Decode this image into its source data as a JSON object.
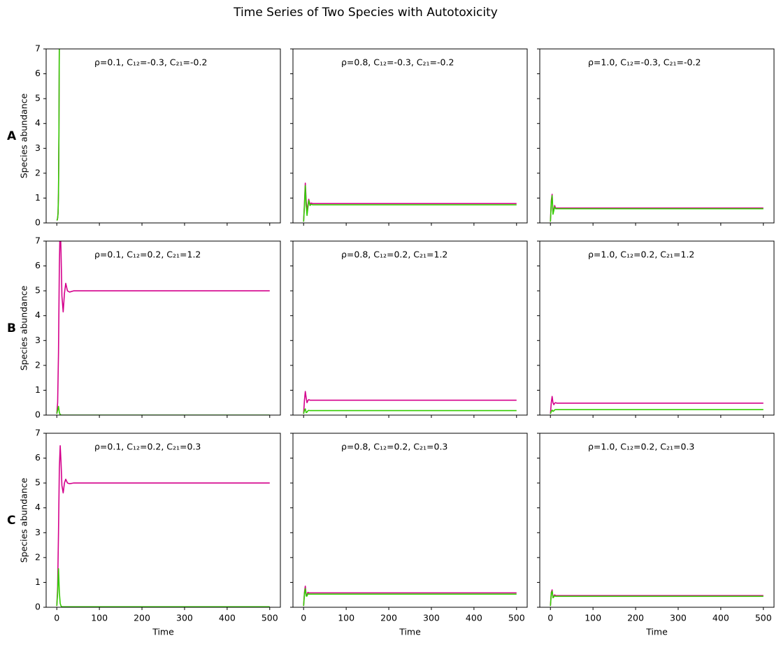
{
  "title": "Time Series of Two Species with Autotoxicity",
  "chart_data": [
    {
      "type": "line",
      "row_label": "A",
      "ylabel": "Species abundance",
      "annotation": "ρ=0.1, C₁₂=-0.3, C₂₁=-0.2",
      "x": [
        0,
        1,
        2,
        3,
        4,
        5,
        6,
        7
      ],
      "series": [
        {
          "color": "#d4008c",
          "values": [
            0.1,
            0.12,
            0.2,
            0.4,
            1.2,
            3.5,
            7.5,
            12
          ]
        },
        {
          "color": "#33cc00",
          "values": [
            0.1,
            0.12,
            0.2,
            0.4,
            1.2,
            3.5,
            7.5,
            12
          ]
        }
      ],
      "xlim": [
        -25,
        525
      ],
      "ylim": [
        0,
        7
      ],
      "xticks": [
        0,
        100,
        200,
        300,
        400,
        500
      ],
      "yticks": [
        0,
        1,
        2,
        3,
        4,
        5,
        6,
        7
      ]
    },
    {
      "type": "line",
      "annotation": "ρ=0.8, C₁₂=-0.3, C₂₁=-0.2",
      "x": [
        0,
        2,
        4,
        6,
        8,
        10,
        12,
        15,
        18,
        21,
        25,
        30,
        40,
        60,
        100,
        200,
        300,
        400,
        500
      ],
      "series": [
        {
          "color": "#d4008c",
          "values": [
            0.05,
            0.8,
            1.6,
            0.9,
            0.5,
            0.7,
            0.95,
            0.75,
            0.8,
            0.78,
            0.78,
            0.78,
            0.78,
            0.78,
            0.78,
            0.78,
            0.78,
            0.78,
            0.78
          ]
        },
        {
          "color": "#33cc00",
          "values": [
            0.05,
            0.7,
            1.5,
            0.7,
            0.3,
            0.6,
            0.9,
            0.7,
            0.75,
            0.73,
            0.73,
            0.73,
            0.73,
            0.73,
            0.73,
            0.73,
            0.73,
            0.73,
            0.73
          ]
        }
      ],
      "xlim": [
        -25,
        525
      ],
      "ylim": [
        0,
        7
      ],
      "xticks": [
        0,
        100,
        200,
        300,
        400,
        500
      ],
      "yticks": [
        0,
        1,
        2,
        3,
        4,
        5,
        6,
        7
      ]
    },
    {
      "type": "line",
      "annotation": "ρ=1.0, C₁₂=-0.3, C₂₁=-0.2",
      "x": [
        0,
        2,
        4,
        6,
        8,
        10,
        12,
        15,
        18,
        21,
        25,
        30,
        40,
        60,
        100,
        200,
        300,
        400,
        500
      ],
      "series": [
        {
          "color": "#d4008c",
          "values": [
            0.05,
            0.9,
            1.15,
            0.4,
            0.55,
            0.7,
            0.6,
            0.6,
            0.6,
            0.6,
            0.6,
            0.6,
            0.6,
            0.6,
            0.6,
            0.6,
            0.6,
            0.6,
            0.6
          ]
        },
        {
          "color": "#33cc00",
          "values": [
            0.05,
            0.8,
            1.1,
            0.35,
            0.5,
            0.65,
            0.57,
            0.57,
            0.57,
            0.57,
            0.57,
            0.57,
            0.57,
            0.57,
            0.57,
            0.57,
            0.57,
            0.57,
            0.57
          ]
        }
      ],
      "xlim": [
        -25,
        525
      ],
      "ylim": [
        0,
        7
      ],
      "xticks": [
        0,
        100,
        200,
        300,
        400,
        500
      ],
      "yticks": [
        0,
        1,
        2,
        3,
        4,
        5,
        6,
        7
      ]
    },
    {
      "type": "line",
      "row_label": "B",
      "ylabel": "Species abundance",
      "annotation": "ρ=0.1, C₁₂=0.2, C₂₁=1.2",
      "x": [
        0,
        2,
        4,
        6,
        8,
        10,
        12,
        15,
        18,
        21,
        25,
        30,
        40,
        60,
        100,
        200,
        300,
        400,
        500
      ],
      "series": [
        {
          "color": "#d4008c",
          "values": [
            0.05,
            0.5,
            2.5,
            6,
            7.8,
            6.5,
            4.8,
            4.15,
            4.9,
            5.3,
            5.0,
            4.95,
            5.0,
            5,
            5,
            5,
            5,
            5,
            5
          ]
        },
        {
          "color": "#33cc00",
          "values": [
            0.05,
            0.2,
            0.35,
            0.1,
            0.02,
            0,
            0,
            0,
            0,
            0,
            0,
            0,
            0,
            0,
            0,
            0,
            0,
            0,
            0
          ]
        }
      ],
      "xlim": [
        -25,
        525
      ],
      "ylim": [
        0,
        7
      ],
      "xticks": [
        0,
        100,
        200,
        300,
        400,
        500
      ],
      "yticks": [
        0,
        1,
        2,
        3,
        4,
        5,
        6,
        7
      ]
    },
    {
      "type": "line",
      "annotation": "ρ=0.8, C₁₂=0.2, C₂₁=1.2",
      "x": [
        0,
        2,
        4,
        6,
        8,
        10,
        12,
        15,
        18,
        21,
        25,
        30,
        40,
        60,
        100,
        200,
        300,
        400,
        500
      ],
      "series": [
        {
          "color": "#d4008c",
          "values": [
            0.05,
            0.6,
            0.95,
            0.7,
            0.5,
            0.58,
            0.62,
            0.6,
            0.6,
            0.6,
            0.6,
            0.6,
            0.6,
            0.6,
            0.6,
            0.6,
            0.6,
            0.6,
            0.6
          ]
        },
        {
          "color": "#33cc00",
          "values": [
            0.05,
            0.2,
            0.25,
            0.1,
            0.12,
            0.17,
            0.19,
            0.18,
            0.18,
            0.18,
            0.18,
            0.18,
            0.18,
            0.18,
            0.18,
            0.18,
            0.18,
            0.18,
            0.18
          ]
        }
      ],
      "xlim": [
        -25,
        525
      ],
      "ylim": [
        0,
        7
      ],
      "xticks": [
        0,
        100,
        200,
        300,
        400,
        500
      ],
      "yticks": [
        0,
        1,
        2,
        3,
        4,
        5,
        6,
        7
      ]
    },
    {
      "type": "line",
      "annotation": "ρ=1.0, C₁₂=0.2, C₂₁=1.2",
      "x": [
        0,
        2,
        4,
        6,
        8,
        10,
        12,
        15,
        18,
        21,
        25,
        30,
        40,
        60,
        100,
        200,
        300,
        400,
        500
      ],
      "series": [
        {
          "color": "#d4008c",
          "values": [
            0.05,
            0.5,
            0.75,
            0.5,
            0.42,
            0.48,
            0.5,
            0.48,
            0.48,
            0.48,
            0.48,
            0.48,
            0.48,
            0.48,
            0.48,
            0.48,
            0.48,
            0.48,
            0.48
          ]
        },
        {
          "color": "#33cc00",
          "values": [
            0.05,
            0.15,
            0.2,
            0.15,
            0.17,
            0.21,
            0.22,
            0.22,
            0.22,
            0.22,
            0.22,
            0.22,
            0.22,
            0.22,
            0.22,
            0.22,
            0.22,
            0.22,
            0.22
          ]
        }
      ],
      "xlim": [
        -25,
        525
      ],
      "ylim": [
        0,
        7
      ],
      "xticks": [
        0,
        100,
        200,
        300,
        400,
        500
      ],
      "yticks": [
        0,
        1,
        2,
        3,
        4,
        5,
        6,
        7
      ]
    },
    {
      "type": "line",
      "row_label": "C",
      "ylabel": "Species abundance",
      "xlabel": "Time",
      "annotation": "ρ=0.1, C₁₂=0.2, C₂₁=0.3",
      "x": [
        0,
        2,
        4,
        6,
        8,
        10,
        12,
        15,
        18,
        21,
        25,
        30,
        40,
        60,
        100,
        200,
        300,
        400,
        500
      ],
      "series": [
        {
          "color": "#d4008c",
          "values": [
            0.05,
            0.8,
            3,
            5.6,
            6.5,
            5.8,
            4.9,
            4.6,
            5.0,
            5.15,
            5.0,
            4.97,
            5.0,
            5,
            5,
            5,
            5,
            5,
            5
          ]
        },
        {
          "color": "#33cc00",
          "values": [
            0.05,
            0.6,
            1.55,
            0.6,
            0.15,
            0.05,
            0.02,
            0.02,
            0.02,
            0.02,
            0.02,
            0.02,
            0.02,
            0.02,
            0.02,
            0.02,
            0.02,
            0.02,
            0.02
          ]
        }
      ],
      "xlim": [
        -25,
        525
      ],
      "ylim": [
        0,
        7
      ],
      "xticks": [
        0,
        100,
        200,
        300,
        400,
        500
      ],
      "yticks": [
        0,
        1,
        2,
        3,
        4,
        5,
        6,
        7
      ]
    },
    {
      "type": "line",
      "xlabel": "Time",
      "annotation": "ρ=0.8, C₁₂=0.2, C₂₁=0.3",
      "x": [
        0,
        2,
        4,
        6,
        8,
        10,
        12,
        15,
        18,
        21,
        25,
        30,
        40,
        60,
        100,
        200,
        300,
        400,
        500
      ],
      "series": [
        {
          "color": "#d4008c",
          "values": [
            0.05,
            0.6,
            0.85,
            0.5,
            0.5,
            0.6,
            0.58,
            0.58,
            0.58,
            0.58,
            0.58,
            0.58,
            0.58,
            0.58,
            0.58,
            0.58,
            0.58,
            0.58,
            0.58
          ]
        },
        {
          "color": "#33cc00",
          "values": [
            0.05,
            0.55,
            0.75,
            0.45,
            0.45,
            0.55,
            0.53,
            0.53,
            0.53,
            0.53,
            0.53,
            0.53,
            0.53,
            0.53,
            0.53,
            0.53,
            0.53,
            0.53,
            0.53
          ]
        }
      ],
      "xlim": [
        -25,
        525
      ],
      "ylim": [
        0,
        7
      ],
      "xticks": [
        0,
        100,
        200,
        300,
        400,
        500
      ],
      "yticks": [
        0,
        1,
        2,
        3,
        4,
        5,
        6,
        7
      ]
    },
    {
      "type": "line",
      "xlabel": "Time",
      "annotation": "ρ=1.0, C₁₂=0.2, C₂₁=0.3",
      "x": [
        0,
        2,
        4,
        6,
        8,
        10,
        12,
        15,
        18,
        21,
        25,
        30,
        40,
        60,
        100,
        200,
        300,
        400,
        500
      ],
      "series": [
        {
          "color": "#d4008c",
          "values": [
            0.05,
            0.6,
            0.7,
            0.4,
            0.45,
            0.5,
            0.47,
            0.47,
            0.47,
            0.47,
            0.47,
            0.47,
            0.47,
            0.47,
            0.47,
            0.47,
            0.47,
            0.47,
            0.47
          ]
        },
        {
          "color": "#33cc00",
          "values": [
            0.05,
            0.55,
            0.65,
            0.38,
            0.42,
            0.46,
            0.44,
            0.44,
            0.44,
            0.44,
            0.44,
            0.44,
            0.44,
            0.44,
            0.44,
            0.44,
            0.44,
            0.44,
            0.44
          ]
        }
      ],
      "xlim": [
        -25,
        525
      ],
      "ylim": [
        0,
        7
      ],
      "xticks": [
        0,
        100,
        200,
        300,
        400,
        500
      ],
      "yticks": [
        0,
        1,
        2,
        3,
        4,
        5,
        6,
        7
      ]
    }
  ]
}
